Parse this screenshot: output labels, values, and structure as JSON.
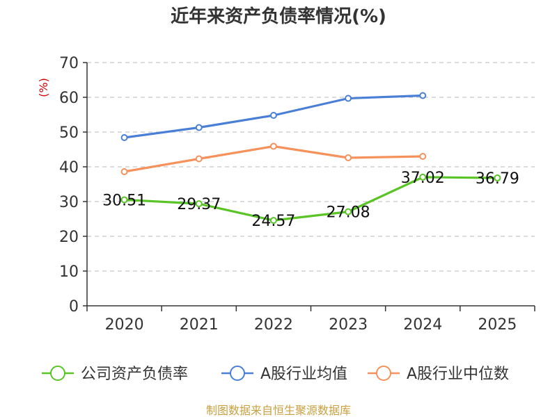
{
  "chart_data": {
    "type": "line",
    "title": "近年来资产负债率情况(%)",
    "ylabel": "(%)",
    "categories": [
      "2020",
      "2021",
      "2022",
      "2023",
      "2024",
      "2025"
    ],
    "ylim": [
      0,
      70
    ],
    "yticks": [
      0,
      10,
      20,
      30,
      40,
      50,
      60,
      70
    ],
    "grid": true,
    "legend_position": "bottom",
    "series": [
      {
        "name": "公司资产负债率",
        "color": "#5ac426",
        "values": [
          30.51,
          29.37,
          24.57,
          27.08,
          37.02,
          36.79
        ],
        "labels": [
          "30.51",
          "29.37",
          "24.57",
          "27.08",
          "37.02",
          "36.79"
        ]
      },
      {
        "name": "A股行业均值",
        "color": "#4a7fd6",
        "values": [
          48.4,
          51.3,
          54.8,
          59.7,
          60.5,
          null
        ]
      },
      {
        "name": "A股行业中位数",
        "color": "#f5915a",
        "values": [
          38.6,
          42.3,
          45.9,
          42.6,
          43.0,
          null
        ]
      }
    ]
  },
  "source": "制图数据来自恒生聚源数据库"
}
